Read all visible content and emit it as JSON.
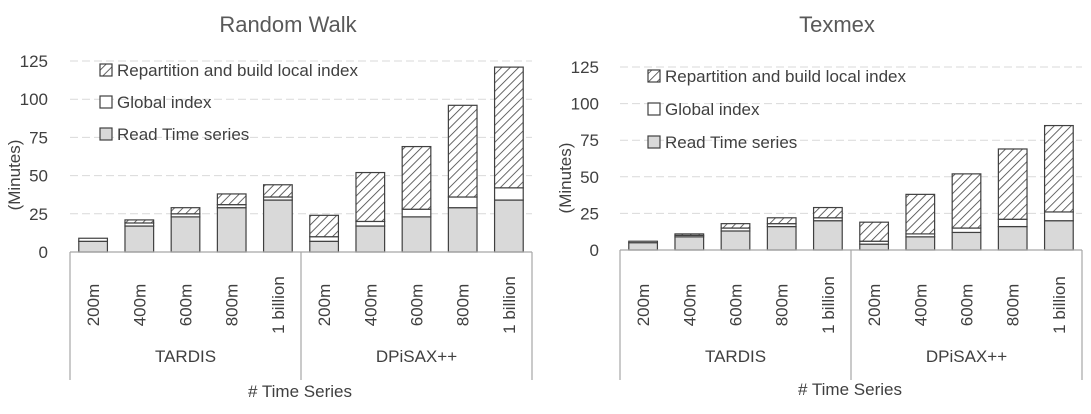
{
  "chart_data": [
    {
      "type": "bar",
      "title": "Random Walk",
      "xlabel": "# Time Series",
      "ylabel": "(Minutes)",
      "ylim": [
        0,
        125
      ],
      "yticks": [
        "0",
        "25",
        "50",
        "75",
        "100",
        "125"
      ],
      "grid": true,
      "legend_placement": "top-left",
      "groups": [
        {
          "name": "TARDIS",
          "categories": [
            "200m",
            "400m",
            "600m",
            "800m",
            "1 billion"
          ]
        },
        {
          "name": "DPiSAX++",
          "categories": [
            "200m",
            "400m",
            "600m",
            "800m",
            "1 billion"
          ]
        }
      ],
      "series": [
        {
          "name": "Read Time series",
          "values": [
            7,
            17,
            23,
            29,
            34,
            7,
            17,
            23,
            29,
            34
          ]
        },
        {
          "name": "Global index",
          "values": [
            2,
            2,
            2,
            2,
            2,
            3,
            3,
            5,
            7,
            8
          ]
        },
        {
          "name": "Repartition and build local index",
          "values": [
            0,
            2,
            4,
            7,
            8,
            14,
            32,
            41,
            60,
            79
          ]
        }
      ]
    },
    {
      "type": "bar",
      "title": "Texmex",
      "xlabel": "# Time Series",
      "ylabel": "(Minutes)",
      "ylim": [
        0,
        125
      ],
      "yticks": [
        "0",
        "25",
        "50",
        "75",
        "100",
        "125"
      ],
      "grid": true,
      "legend_placement": "top-left",
      "groups": [
        {
          "name": "TARDIS",
          "categories": [
            "200m",
            "400m",
            "600m",
            "800m",
            "1 billion"
          ]
        },
        {
          "name": "DPiSAX++",
          "categories": [
            "200m",
            "400m",
            "600m",
            "800m",
            "1 billion"
          ]
        }
      ],
      "series": [
        {
          "name": "Read Time series",
          "values": [
            5,
            9,
            13,
            16,
            20,
            4,
            9,
            12,
            16,
            20
          ]
        },
        {
          "name": "Global index",
          "values": [
            1,
            1,
            2,
            2,
            2,
            2,
            2,
            3,
            5,
            6
          ]
        },
        {
          "name": "Repartition and build local index",
          "values": [
            0,
            1,
            3,
            4,
            7,
            13,
            27,
            37,
            48,
            59
          ]
        }
      ]
    }
  ],
  "colors": {
    "read": "#d9d9d9",
    "global": "#ffffff",
    "repartition_hatch": "#404040",
    "outline": "#404040",
    "grid": "#d9d9d9",
    "axis": "#a6a6a6",
    "text": "#404040",
    "title": "#595959"
  }
}
